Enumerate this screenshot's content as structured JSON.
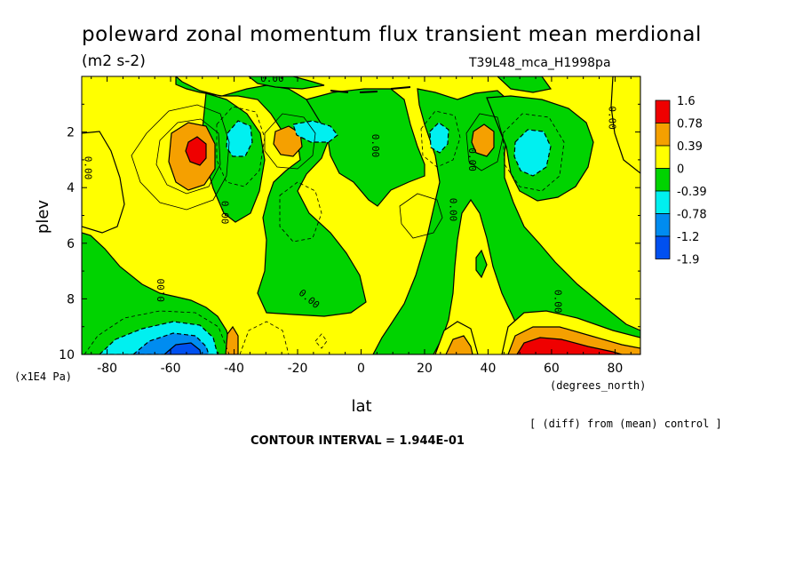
{
  "title": "poleward zonal momentum flux transient mean merdional",
  "units": "(m2 s-2)",
  "run_label": "T39L48_mca_H1998pa",
  "diff_note": "[ (diff) from (mean) control ]",
  "contour_interval": "CONTOUR INTERVAL = 1.944E-01",
  "colors": {
    "red": "#ef0000",
    "orange": "#f5a000",
    "yellow": "#ffff00",
    "green": "#00d300",
    "cyan": "#00f0f0",
    "blue": "#008cf0",
    "darkblue": "#0050f0"
  },
  "chart_data": {
    "type": "heatmap",
    "xlabel": "lat",
    "xunits": "(degrees_north)",
    "ylabel": "plev",
    "yunits": "(x1E4 Pa)",
    "xlim": [
      -88,
      88
    ],
    "ylim": [
      10,
      0
    ],
    "x_ticks": [
      "-80",
      "-60",
      "-40",
      "-20",
      "0",
      "20",
      "40",
      "60",
      "80"
    ],
    "y_ticks": [
      "2",
      "4",
      "6",
      "8",
      "10"
    ],
    "colorbar_levels": [
      "1.6",
      "0.78",
      "0.39",
      "0",
      "-0.39",
      "-0.78",
      "-1.2",
      "-1.9"
    ],
    "contour_labels": [
      "0.00",
      "0.00",
      "0.00",
      "0.00",
      "0.00",
      "0.00",
      "0.00",
      "0.00",
      "0.00"
    ],
    "features": [
      {
        "type": "maximum",
        "lat": -54,
        "plev": 2.8,
        "value": 1.6
      },
      {
        "type": "minimum",
        "lat": -40,
        "plev": 2.4,
        "value": -0.6
      },
      {
        "type": "maximum",
        "lat": -23,
        "plev": 2.5,
        "value": 0.6
      },
      {
        "type": "minimum",
        "lat": -13,
        "plev": 2.2,
        "value": -0.6
      },
      {
        "type": "minimum",
        "lat": 24,
        "plev": 2.4,
        "value": -0.6
      },
      {
        "type": "maximum",
        "lat": 39,
        "plev": 2.4,
        "value": 0.6
      },
      {
        "type": "minimum",
        "lat": 54,
        "plev": 2.8,
        "value": -0.6
      },
      {
        "type": "minimum",
        "lat": -55,
        "plev": 9.8,
        "value": -1.2
      },
      {
        "type": "maximum",
        "lat": 55,
        "plev": 9.8,
        "value": 1.6
      },
      {
        "type": "maximum",
        "lat": 31,
        "plev": 9.8,
        "value": 0.6
      },
      {
        "type": "maximum",
        "lat": -40,
        "plev": 9.7,
        "value": 0.5
      }
    ]
  }
}
